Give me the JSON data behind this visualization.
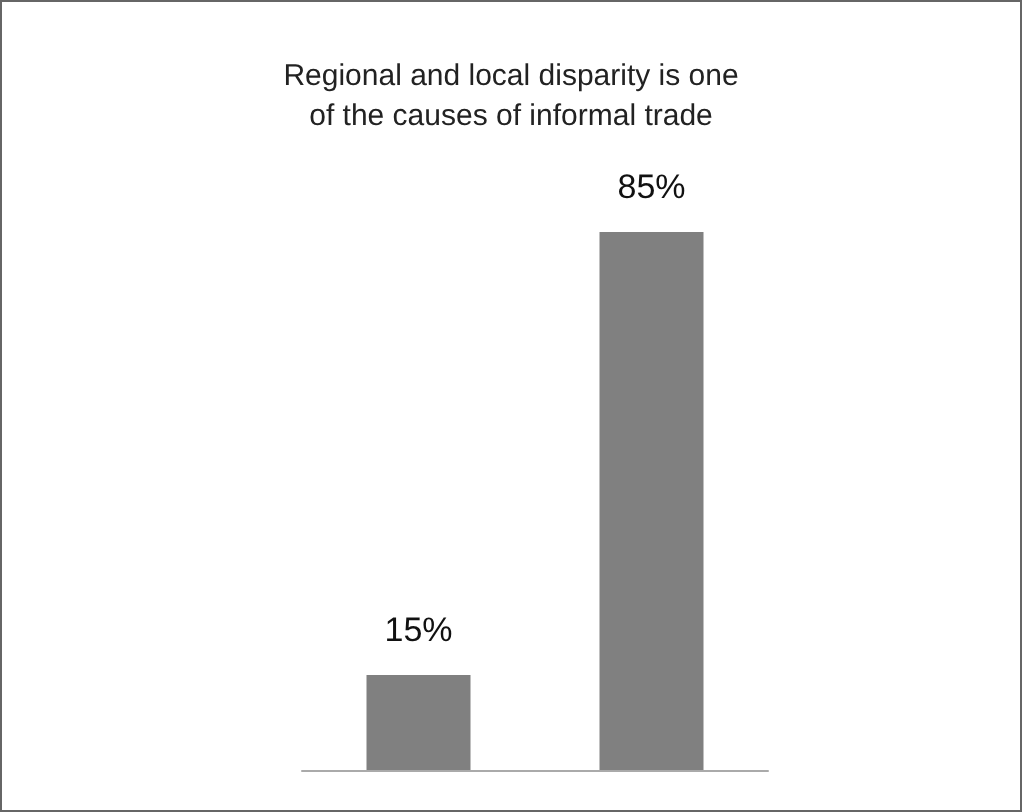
{
  "chart_data": {
    "type": "bar",
    "title": "Regional and local disparity is one\nof the causes of informal trade",
    "categories": [
      null,
      null
    ],
    "values": [
      15,
      85
    ],
    "color": "#808080",
    "value_labels": [
      "15%",
      "85%"
    ]
  }
}
